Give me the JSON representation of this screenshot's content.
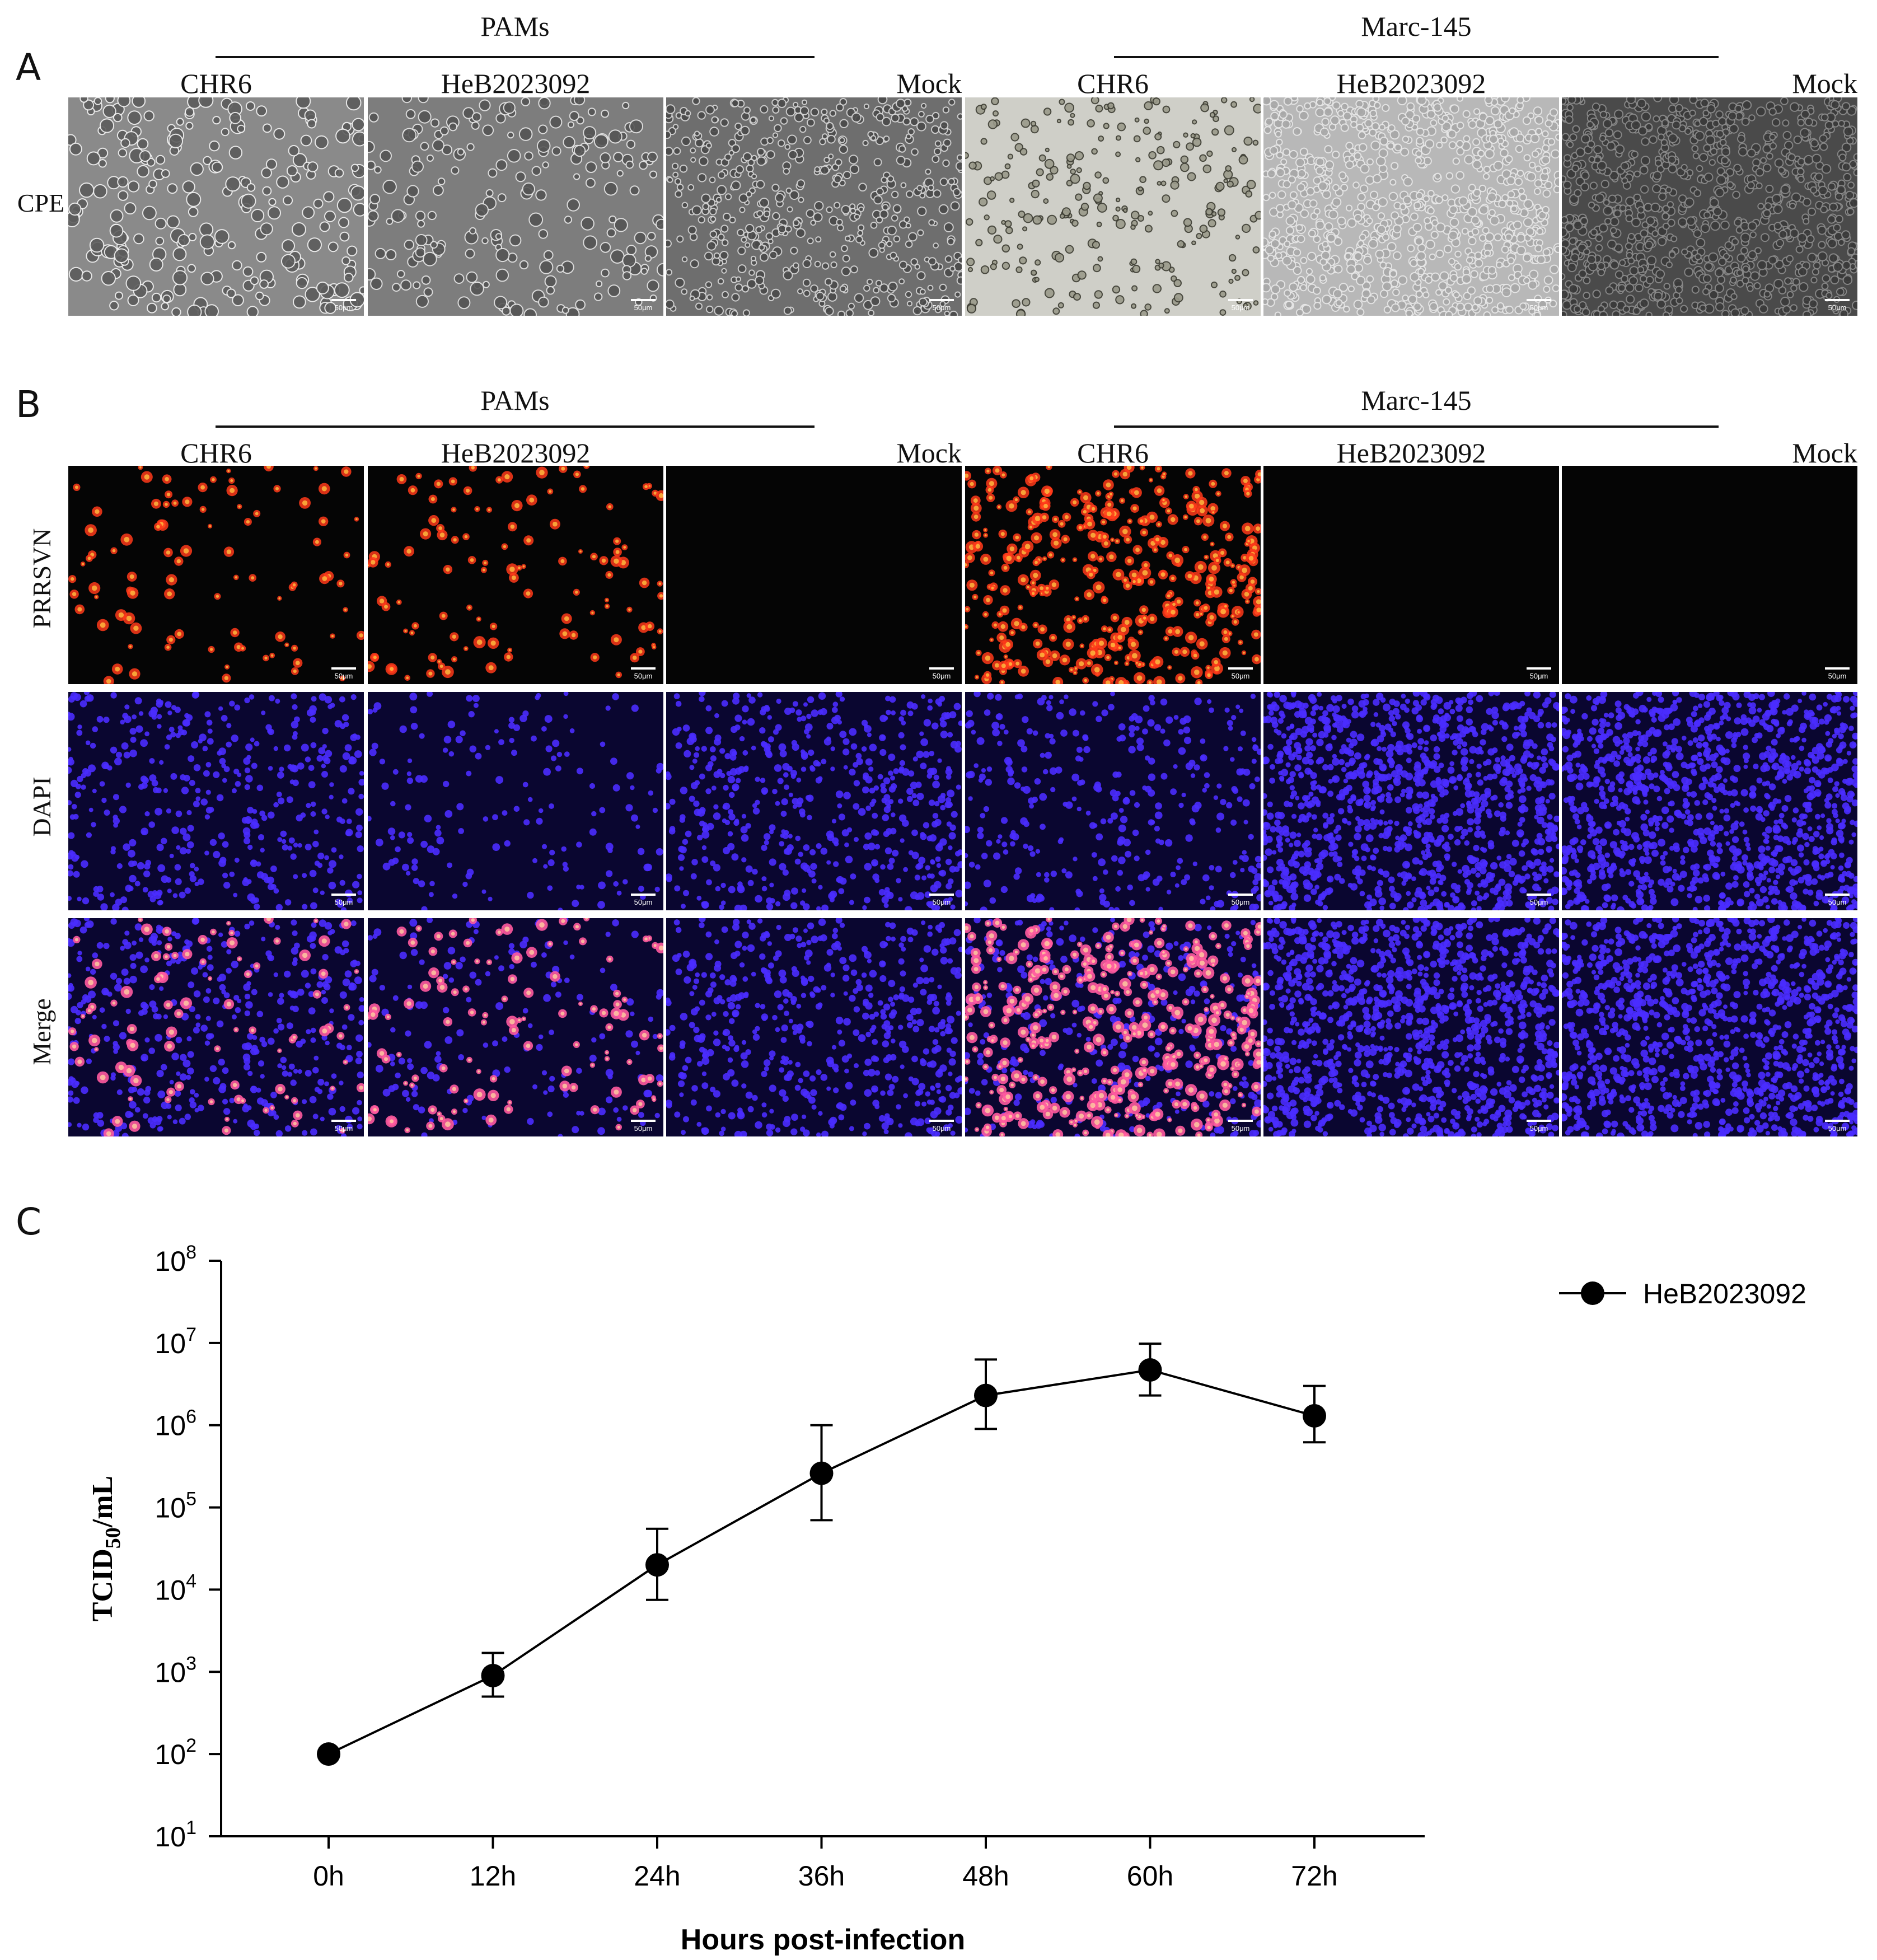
{
  "panel_A": {
    "letter": "A",
    "groups": [
      {
        "name": "PAMs",
        "columns": [
          "CHR6",
          "HeB2023092",
          "Mock"
        ]
      },
      {
        "name": "Marc-145",
        "columns": [
          "CHR6",
          "HeB2023092",
          "Mock"
        ]
      }
    ],
    "row_label": "CPE",
    "scale_bar_label": "50μm",
    "tiles": [
      {
        "kind": "cpe",
        "style": "pam-infected-chr6"
      },
      {
        "kind": "cpe",
        "style": "pam-infected-heb"
      },
      {
        "kind": "cpe",
        "style": "pam-mock"
      },
      {
        "kind": "cpe",
        "style": "marc-infected-chr6"
      },
      {
        "kind": "cpe",
        "style": "marc-normal"
      },
      {
        "kind": "cpe",
        "style": "marc-dark"
      }
    ]
  },
  "panel_B": {
    "letter": "B",
    "groups": [
      {
        "name": "PAMs",
        "columns": [
          "CHR6",
          "HeB2023092",
          "Mock"
        ]
      },
      {
        "name": "Marc-145",
        "columns": [
          "CHR6",
          "HeB2023092",
          "Mock"
        ]
      }
    ],
    "rows": [
      "PRRSVN",
      "DAPI",
      "Merge"
    ],
    "scale_bar_label": "50μm",
    "colors": {
      "prrsv": "#ff3a1a",
      "dapi": "#4a2cff",
      "merge": "#ff5aa0",
      "background": "#050505"
    }
  },
  "panel_C": {
    "letter": "C",
    "legend": "HeB2023092",
    "chart_data": {
      "type": "line",
      "x": [
        "0h",
        "12h",
        "24h",
        "36h",
        "48h",
        "60h",
        "72h"
      ],
      "series": [
        {
          "name": "HeB2023092",
          "values": [
            100,
            900,
            20000,
            260000,
            2300000,
            4700000,
            1300000
          ],
          "error_low": [
            100,
            500,
            7500,
            70000,
            900000,
            2300000,
            620000
          ],
          "error_high": [
            100,
            1700,
            55000,
            1000000,
            6300000,
            9800000,
            3000000
          ]
        }
      ],
      "xlabel": "Hours post-infection",
      "ylabel": "TCID50/mL",
      "yscale": "log",
      "ylim": [
        10,
        100000000
      ],
      "ytick_exponents": [
        1,
        2,
        3,
        4,
        5,
        6,
        7,
        8
      ],
      "ytick_base": "10",
      "grid": false,
      "legend_position": "top-right",
      "marker": "filled-circle",
      "line_color": "#000000"
    }
  }
}
